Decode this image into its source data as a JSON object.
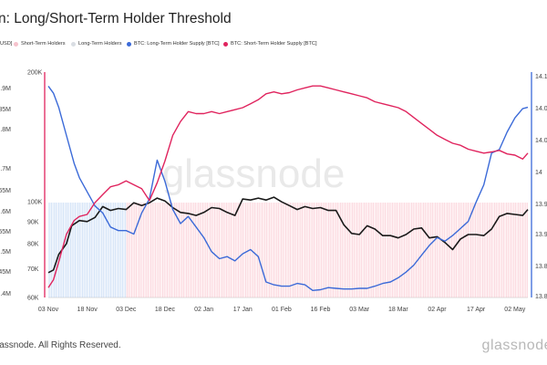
{
  "title": "n: Long/Short-Term Holder Threshold",
  "footer": "lassnode. All Rights Reserved.",
  "brand": "glassnode",
  "watermark": "glassnode",
  "legend": [
    {
      "label": "USD]",
      "color": "#888888",
      "shape": "none"
    },
    {
      "label": "Short-Term Holders",
      "color": "#f6c2cc",
      "shape": "dot"
    },
    {
      "label": "Long-Term Holders",
      "color": "#d9dde3",
      "shape": "dot"
    },
    {
      "label": "BTC: Long-Term Holder Supply [BTC]",
      "color": "#3b6ad8",
      "shape": "dot"
    },
    {
      "label": "BTC: Short-Term Holder Supply [BTC]",
      "color": "#e0245e",
      "shape": "dot"
    }
  ],
  "chart_data": {
    "type": "line",
    "x_ticks": [
      "03 Nov",
      "18 Nov",
      "03 Dec",
      "18 Dec",
      "02 Jan",
      "17 Jan",
      "01 Feb",
      "16 Feb",
      "03 Mar",
      "18 Mar",
      "02 Apr",
      "17 Apr",
      "02 May"
    ],
    "y_price_ticks": [
      "200K",
      "100K",
      "90K",
      "80K",
      "70K",
      "60K"
    ],
    "y_price_range": [
      60000,
      200000
    ],
    "y_price_scale": "log",
    "y_left_ticks": [
      "1.9M",
      "1.85M",
      "1.8M",
      "1.7M",
      "1.65M",
      "1.6M",
      "1.55M",
      "1.5M",
      "1.45M",
      "1.4M"
    ],
    "y_right_ticks": [
      "14.1",
      "14.0",
      "14.0",
      "14",
      "13.9",
      "13.9",
      "13.8",
      "13.8"
    ],
    "regions": [
      {
        "name": "Long-Term Holders",
        "from": "2024-11-03",
        "to": "2024-12-03",
        "color": "#cfe0f7"
      },
      {
        "name": "Short-Term Holders",
        "from": "2024-12-03",
        "to": "2025-05-07",
        "color": "#fbd3da"
      }
    ],
    "series": [
      {
        "name": "Price [USD]",
        "color": "#1a1a1a",
        "unit": "USD",
        "x": [
          "2024-11-03",
          "2024-11-05",
          "2024-11-07",
          "2024-11-10",
          "2024-11-12",
          "2024-11-15",
          "2024-11-18",
          "2024-11-21",
          "2024-11-24",
          "2024-11-27",
          "2024-11-30",
          "2024-12-03",
          "2024-12-06",
          "2024-12-09",
          "2024-12-12",
          "2024-12-15",
          "2024-12-18",
          "2024-12-21",
          "2024-12-24",
          "2024-12-27",
          "2024-12-30",
          "2025-01-02",
          "2025-01-05",
          "2025-01-08",
          "2025-01-11",
          "2025-01-14",
          "2025-01-17",
          "2025-01-20",
          "2025-01-23",
          "2025-01-26",
          "2025-01-29",
          "2025-02-01",
          "2025-02-04",
          "2025-02-07",
          "2025-02-10",
          "2025-02-13",
          "2025-02-16",
          "2025-02-19",
          "2025-02-22",
          "2025-02-25",
          "2025-02-28",
          "2025-03-03",
          "2025-03-06",
          "2025-03-09",
          "2025-03-12",
          "2025-03-15",
          "2025-03-18",
          "2025-03-21",
          "2025-03-24",
          "2025-03-27",
          "2025-03-30",
          "2025-04-02",
          "2025-04-05",
          "2025-04-08",
          "2025-04-11",
          "2025-04-14",
          "2025-04-17",
          "2025-04-20",
          "2025-04-23",
          "2025-04-26",
          "2025-04-29",
          "2025-05-02",
          "2025-05-05",
          "2025-05-07"
        ],
        "values": [
          68500,
          69500,
          75500,
          80000,
          88000,
          90500,
          90000,
          92000,
          97500,
          95500,
          96500,
          96000,
          99500,
          98000,
          99500,
          102000,
          100500,
          97000,
          94500,
          94000,
          93000,
          94500,
          97000,
          96500,
          94500,
          93000,
          101500,
          101000,
          102000,
          101000,
          102500,
          100000,
          98000,
          96000,
          97500,
          96500,
          97000,
          95500,
          95500,
          88500,
          84500,
          84000,
          88000,
          86500,
          83500,
          83500,
          82500,
          84000,
          86500,
          87000,
          82500,
          83000,
          80500,
          77500,
          82000,
          84000,
          84000,
          83500,
          86500,
          92500,
          94000,
          93500,
          93000,
          96000
        ]
      },
      {
        "name": "BTC: Long-Term Holder Supply [BTC]",
        "color": "#3b6ad8",
        "unit": "BTC",
        "x": [
          "2024-11-03",
          "2024-11-05",
          "2024-11-07",
          "2024-11-10",
          "2024-11-13",
          "2024-11-15",
          "2024-11-18",
          "2024-11-21",
          "2024-11-24",
          "2024-11-27",
          "2024-11-30",
          "2024-12-03",
          "2024-12-06",
          "2024-12-09",
          "2024-12-12",
          "2024-12-15",
          "2024-12-18",
          "2024-12-21",
          "2024-12-24",
          "2024-12-27",
          "2024-12-30",
          "2025-01-02",
          "2025-01-05",
          "2025-01-08",
          "2025-01-11",
          "2025-01-14",
          "2025-01-17",
          "2025-01-20",
          "2025-01-23",
          "2025-01-26",
          "2025-01-29",
          "2025-02-01",
          "2025-02-04",
          "2025-02-07",
          "2025-02-10",
          "2025-02-13",
          "2025-02-16",
          "2025-02-19",
          "2025-02-22",
          "2025-02-25",
          "2025-02-28",
          "2025-03-03",
          "2025-03-06",
          "2025-03-09",
          "2025-03-12",
          "2025-03-15",
          "2025-03-18",
          "2025-03-21",
          "2025-03-24",
          "2025-03-27",
          "2025-03-30",
          "2025-04-02",
          "2025-04-05",
          "2025-04-08",
          "2025-04-11",
          "2025-04-14",
          "2025-04-17",
          "2025-04-20",
          "2025-04-23",
          "2025-04-26",
          "2025-04-29",
          "2025-05-02",
          "2025-05-05",
          "2025-05-07"
        ],
        "values": [
          14.09,
          14.08,
          14.06,
          14.02,
          13.98,
          13.96,
          13.94,
          13.92,
          13.91,
          13.89,
          13.885,
          13.885,
          13.88,
          13.91,
          13.93,
          13.985,
          13.955,
          13.915,
          13.895,
          13.905,
          13.89,
          13.875,
          13.855,
          13.845,
          13.848,
          13.842,
          13.852,
          13.858,
          13.848,
          13.812,
          13.808,
          13.806,
          13.806,
          13.81,
          13.808,
          13.8,
          13.801,
          13.804,
          13.803,
          13.802,
          13.802,
          13.803,
          13.803,
          13.806,
          13.81,
          13.812,
          13.818,
          13.826,
          13.836,
          13.85,
          13.864,
          13.875,
          13.87,
          13.878,
          13.888,
          13.898,
          13.925,
          13.95,
          13.995,
          14.0,
          14.025,
          14.045,
          14.058,
          14.06
        ]
      },
      {
        "name": "BTC: Short-Term Holder Supply [BTC]",
        "color": "#e0245e",
        "unit": "BTC",
        "x": [
          "2024-11-03",
          "2024-11-05",
          "2024-11-07",
          "2024-11-10",
          "2024-11-13",
          "2024-11-15",
          "2024-11-18",
          "2024-11-21",
          "2024-11-24",
          "2024-11-27",
          "2024-11-30",
          "2024-12-03",
          "2024-12-06",
          "2024-12-09",
          "2024-12-12",
          "2024-12-15",
          "2024-12-18",
          "2024-12-21",
          "2024-12-24",
          "2024-12-27",
          "2024-12-30",
          "2025-01-02",
          "2025-01-05",
          "2025-01-08",
          "2025-01-11",
          "2025-01-14",
          "2025-01-17",
          "2025-01-20",
          "2025-01-23",
          "2025-01-26",
          "2025-01-29",
          "2025-02-01",
          "2025-02-04",
          "2025-02-07",
          "2025-02-10",
          "2025-02-13",
          "2025-02-16",
          "2025-02-19",
          "2025-02-22",
          "2025-02-25",
          "2025-02-28",
          "2025-03-03",
          "2025-03-06",
          "2025-03-09",
          "2025-03-12",
          "2025-03-15",
          "2025-03-18",
          "2025-03-21",
          "2025-03-24",
          "2025-03-27",
          "2025-03-30",
          "2025-04-02",
          "2025-04-05",
          "2025-04-08",
          "2025-04-11",
          "2025-04-14",
          "2025-04-17",
          "2025-04-20",
          "2025-04-23",
          "2025-04-26",
          "2025-04-29",
          "2025-05-02",
          "2025-05-05",
          "2025-05-07"
        ],
        "values": [
          1.405,
          1.425,
          1.47,
          1.54,
          1.575,
          1.585,
          1.59,
          1.62,
          1.64,
          1.66,
          1.665,
          1.675,
          1.665,
          1.655,
          1.625,
          1.67,
          1.725,
          1.79,
          1.825,
          1.85,
          1.845,
          1.845,
          1.85,
          1.845,
          1.85,
          1.855,
          1.86,
          1.87,
          1.88,
          1.895,
          1.9,
          1.895,
          1.898,
          1.905,
          1.91,
          1.915,
          1.915,
          1.91,
          1.905,
          1.9,
          1.895,
          1.89,
          1.885,
          1.875,
          1.87,
          1.865,
          1.86,
          1.85,
          1.835,
          1.82,
          1.805,
          1.79,
          1.78,
          1.77,
          1.765,
          1.755,
          1.75,
          1.745,
          1.748,
          1.752,
          1.743,
          1.74,
          1.73,
          1.745
        ]
      }
    ],
    "grid": false
  }
}
